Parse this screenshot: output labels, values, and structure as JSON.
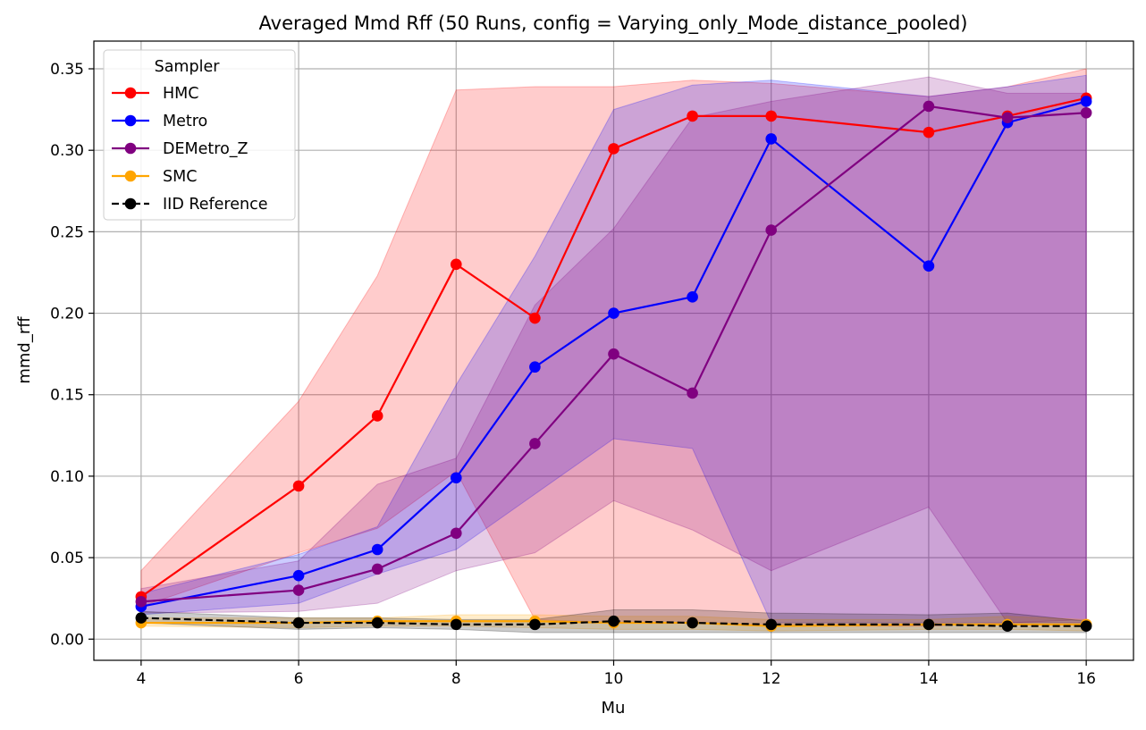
{
  "chart_data": {
    "type": "line",
    "title": "Averaged Mmd Rff (50 Runs, config = Varying_only_Mode_distance_pooled)",
    "xlabel": "Mu",
    "ylabel": "mmd_rff",
    "xlim": [
      3.4,
      16.6
    ],
    "ylim": [
      -0.013,
      0.367
    ],
    "xticks": [
      4,
      6,
      8,
      10,
      12,
      14,
      16
    ],
    "yticks": [
      0.0,
      0.05,
      0.1,
      0.15,
      0.2,
      0.25,
      0.3,
      0.35
    ],
    "ytick_labels": [
      "0.00",
      "0.05",
      "0.10",
      "0.15",
      "0.20",
      "0.25",
      "0.30",
      "0.35"
    ],
    "grid": true,
    "legend": {
      "title": "Sampler",
      "placement": "top-left"
    },
    "x": [
      4,
      6,
      7,
      8,
      9,
      10,
      11,
      12,
      14,
      15,
      16
    ],
    "series": [
      {
        "name": "HMC",
        "color": "#ff0000",
        "linestyle": "solid",
        "values": [
          0.026,
          0.094,
          0.137,
          0.23,
          0.197,
          0.301,
          0.321,
          0.321,
          0.311,
          0.321,
          0.332
        ],
        "band_upper": [
          0.042,
          0.146,
          0.223,
          0.337,
          0.339,
          0.339,
          0.343,
          0.341,
          0.333,
          0.339,
          0.35
        ],
        "band_lower": [
          0.02,
          0.053,
          0.068,
          0.103,
          0.012,
          0.01,
          0.01,
          0.008,
          0.008,
          0.01,
          0.01
        ]
      },
      {
        "name": "Metro",
        "color": "#0000ff",
        "linestyle": "solid",
        "values": [
          0.02,
          0.039,
          0.055,
          0.099,
          0.167,
          0.2,
          0.21,
          0.307,
          0.229,
          0.317,
          0.33
        ],
        "band_upper": [
          0.028,
          0.052,
          0.069,
          0.156,
          0.235,
          0.325,
          0.34,
          0.343,
          0.333,
          0.339,
          0.346
        ],
        "band_lower": [
          0.015,
          0.022,
          0.04,
          0.055,
          0.089,
          0.123,
          0.117,
          0.01,
          0.01,
          0.01,
          0.01
        ]
      },
      {
        "name": "DEMetro_Z",
        "color": "#800080",
        "linestyle": "solid",
        "values": [
          0.023,
          0.03,
          0.043,
          0.065,
          0.12,
          0.175,
          0.151,
          0.251,
          0.327,
          0.32,
          0.323
        ],
        "band_upper": [
          0.031,
          0.048,
          0.095,
          0.111,
          0.205,
          0.252,
          0.32,
          0.33,
          0.345,
          0.335,
          0.335
        ],
        "band_lower": [
          0.016,
          0.017,
          0.022,
          0.042,
          0.053,
          0.085,
          0.067,
          0.042,
          0.081,
          0.01,
          0.012
        ]
      },
      {
        "name": "SMC",
        "color": "#ffa500",
        "linestyle": "solid",
        "values": [
          0.01,
          0.01,
          0.011,
          0.011,
          0.011,
          0.01,
          0.01,
          0.008,
          0.009,
          0.009,
          0.009
        ],
        "band_upper": [
          0.013,
          0.013,
          0.013,
          0.015,
          0.015,
          0.014,
          0.014,
          0.012,
          0.012,
          0.014,
          0.012
        ],
        "band_lower": [
          0.008,
          0.007,
          0.008,
          0.008,
          0.007,
          0.006,
          0.006,
          0.005,
          0.006,
          0.006,
          0.005
        ]
      },
      {
        "name": "IID Reference",
        "color": "#000000",
        "linestyle": "dashed",
        "values": [
          0.013,
          0.01,
          0.01,
          0.009,
          0.009,
          0.011,
          0.01,
          0.009,
          0.009,
          0.008,
          0.008
        ],
        "band_upper": [
          0.017,
          0.013,
          0.013,
          0.012,
          0.012,
          0.018,
          0.018,
          0.016,
          0.015,
          0.016,
          0.011
        ],
        "band_lower": [
          0.01,
          0.006,
          0.007,
          0.006,
          0.004,
          0.004,
          0.004,
          0.004,
          0.004,
          0.004,
          0.004
        ]
      }
    ]
  }
}
